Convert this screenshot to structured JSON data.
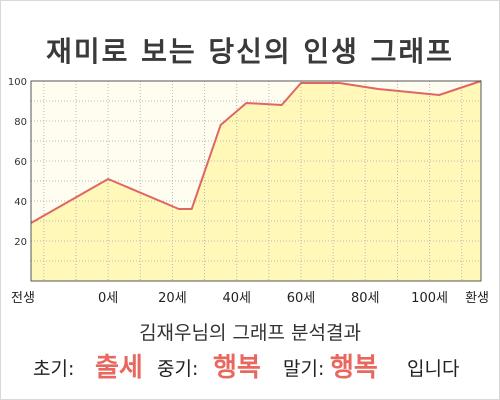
{
  "title": "재미로 보는 당신의 인생 그래프",
  "summary": "김재우님의 그래프 분석결과",
  "phases": {
    "early_label": "초기:",
    "early_value": "출세",
    "middle_label": "중기:",
    "middle_value": "행복",
    "late_label": "말기:",
    "late_value": "행복",
    "ending": "입니다"
  },
  "colors": {
    "line": "#e06666",
    "fill": "#fff8b8",
    "plot_bg": "#fffdf0",
    "highlight": "#e8675f"
  },
  "chart_data": {
    "type": "area",
    "title": "재미로 보는 당신의 인생 그래프",
    "xlabel": "",
    "ylabel": "",
    "x_tick_labels": [
      "전생",
      "0세",
      "20세",
      "40세",
      "60세",
      "80세",
      "100세",
      "환생"
    ],
    "y_ticks": [
      20,
      40,
      60,
      80,
      100
    ],
    "ylim": [
      0,
      100
    ],
    "grid": true,
    "series": [
      {
        "x": [
          -24,
          0,
          22,
          26,
          35,
          43,
          54,
          60,
          72,
          84,
          103,
          116
        ],
        "values": [
          29,
          51,
          36,
          36,
          78,
          89,
          88,
          99,
          99,
          96,
          93,
          100
        ]
      }
    ]
  }
}
